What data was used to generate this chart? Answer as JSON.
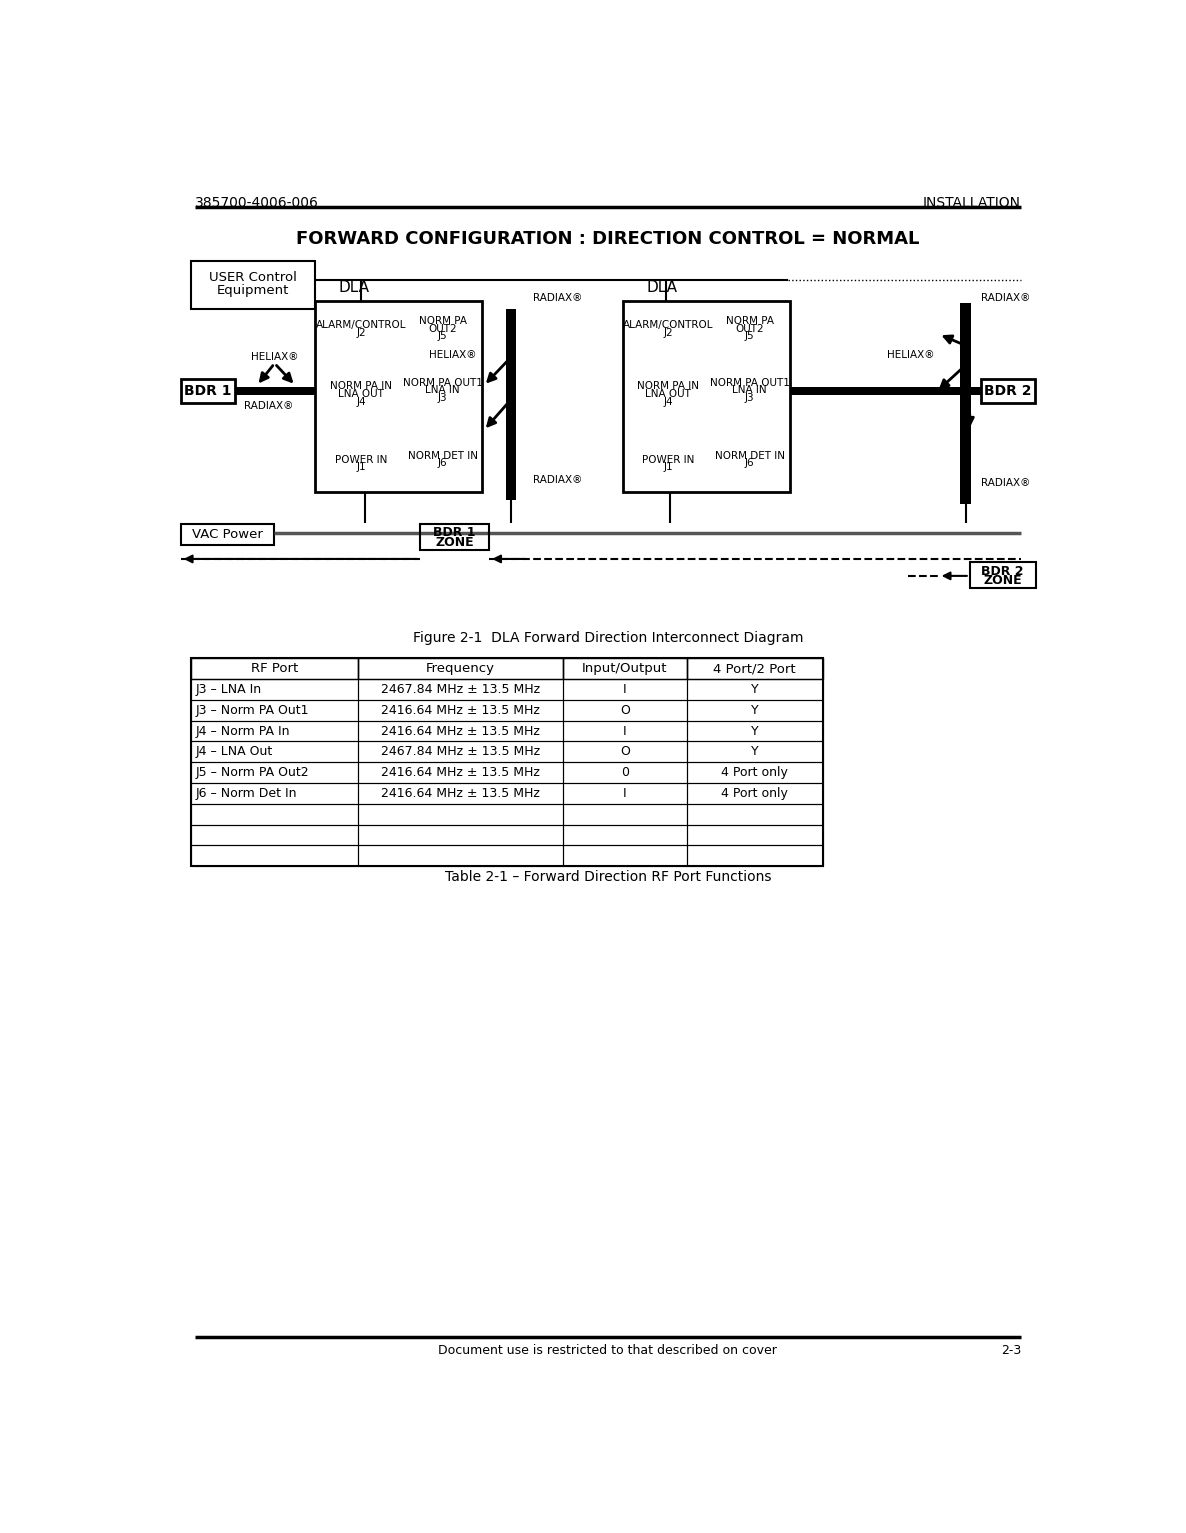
{
  "title_top_left": "385700-4006-006",
  "title_top_right": "INSTALLATION",
  "main_title": "FORWARD CONFIGURATION : DIRECTION CONTROL = NORMAL",
  "figure_caption": "Figure 2-1  DLA Forward Direction Interconnect Diagram",
  "table_caption": "Table 2-1 – Forward Direction RF Port Functions",
  "footer": "Document use is restricted to that described on cover",
  "footer_right": "2-3",
  "table_headers": [
    "RF Port",
    "Frequency",
    "Input/Output",
    "4 Port/2 Port"
  ],
  "table_rows": [
    [
      "J3 – LNA In",
      "2467.84 MHz ± 13.5 MHz",
      "I",
      "Y"
    ],
    [
      "J3 – Norm PA Out1",
      "2416.64 MHz ± 13.5 MHz",
      "O",
      "Y"
    ],
    [
      "J4 – Norm PA In",
      "2416.64 MHz ± 13.5 MHz",
      "I",
      "Y"
    ],
    [
      "J4 – LNA Out",
      "2467.84 MHz ± 13.5 MHz",
      "O",
      "Y"
    ],
    [
      "J5 – Norm PA Out2",
      "2416.64 MHz ± 13.5 MHz",
      "0",
      "4 Port only"
    ],
    [
      "J6 – Norm Det In",
      "2416.64 MHz ± 13.5 MHz",
      "I",
      "4 Port only"
    ],
    [
      "",
      "",
      "",
      ""
    ],
    [
      "",
      "",
      "",
      ""
    ],
    [
      "",
      "",
      "",
      ""
    ]
  ],
  "bg_color": "#ffffff"
}
